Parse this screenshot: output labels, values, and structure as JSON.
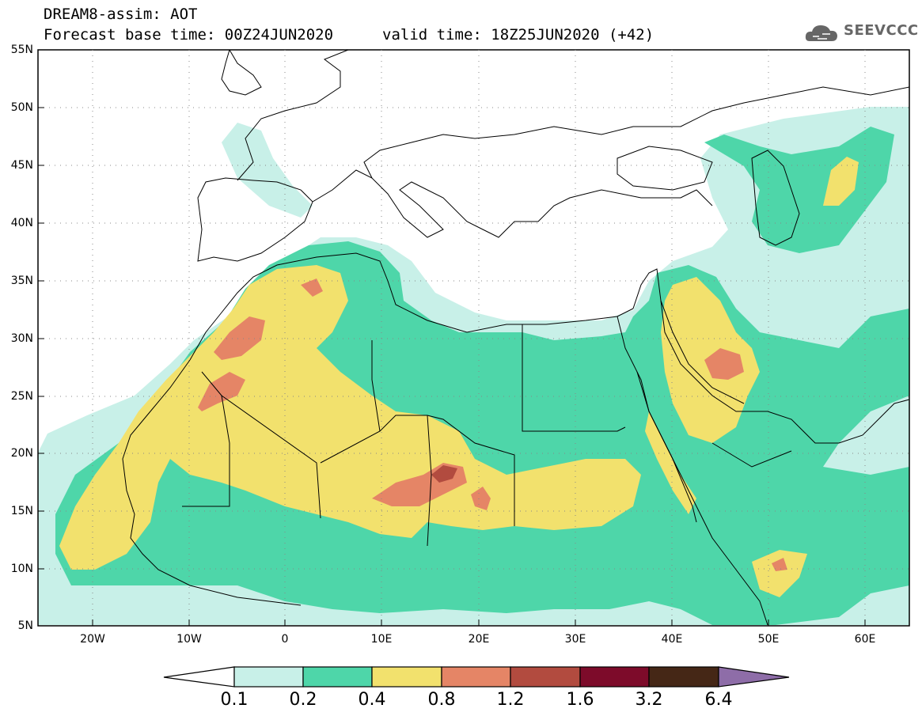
{
  "title": {
    "line1": "DREAM8-assim: AOT",
    "line2": "Forecast base time: 00Z24JUN2020",
    "valid": "valid time: 18Z25JUN2020 (+42)"
  },
  "logo": {
    "text": "SEEVCCC",
    "icon": "cloud-icon"
  },
  "map": {
    "lon_range": [
      -25,
      65
    ],
    "lat_range": [
      5,
      55
    ],
    "lat_labels": [
      "55N",
      "50N",
      "45N",
      "40N",
      "35N",
      "30N",
      "25N",
      "20N",
      "15N",
      "10N",
      "5N"
    ],
    "lon_labels": [
      "20W",
      "10W",
      "0",
      "10E",
      "20E",
      "30E",
      "40E",
      "50E",
      "60E"
    ]
  },
  "colorbar": {
    "labels": [
      "0.1",
      "0.2",
      "0.4",
      "0.8",
      "1.2",
      "1.6",
      "3.2",
      "6.4"
    ],
    "colors": {
      "c01": "#c8f0e8",
      "c02": "#4ed6a9",
      "c04": "#f2e16d",
      "c08": "#e58566",
      "c12": "#b24b3f",
      "c16": "#7d0b2a",
      "c32": "#452716",
      "c64": "#8e6da8"
    }
  }
}
